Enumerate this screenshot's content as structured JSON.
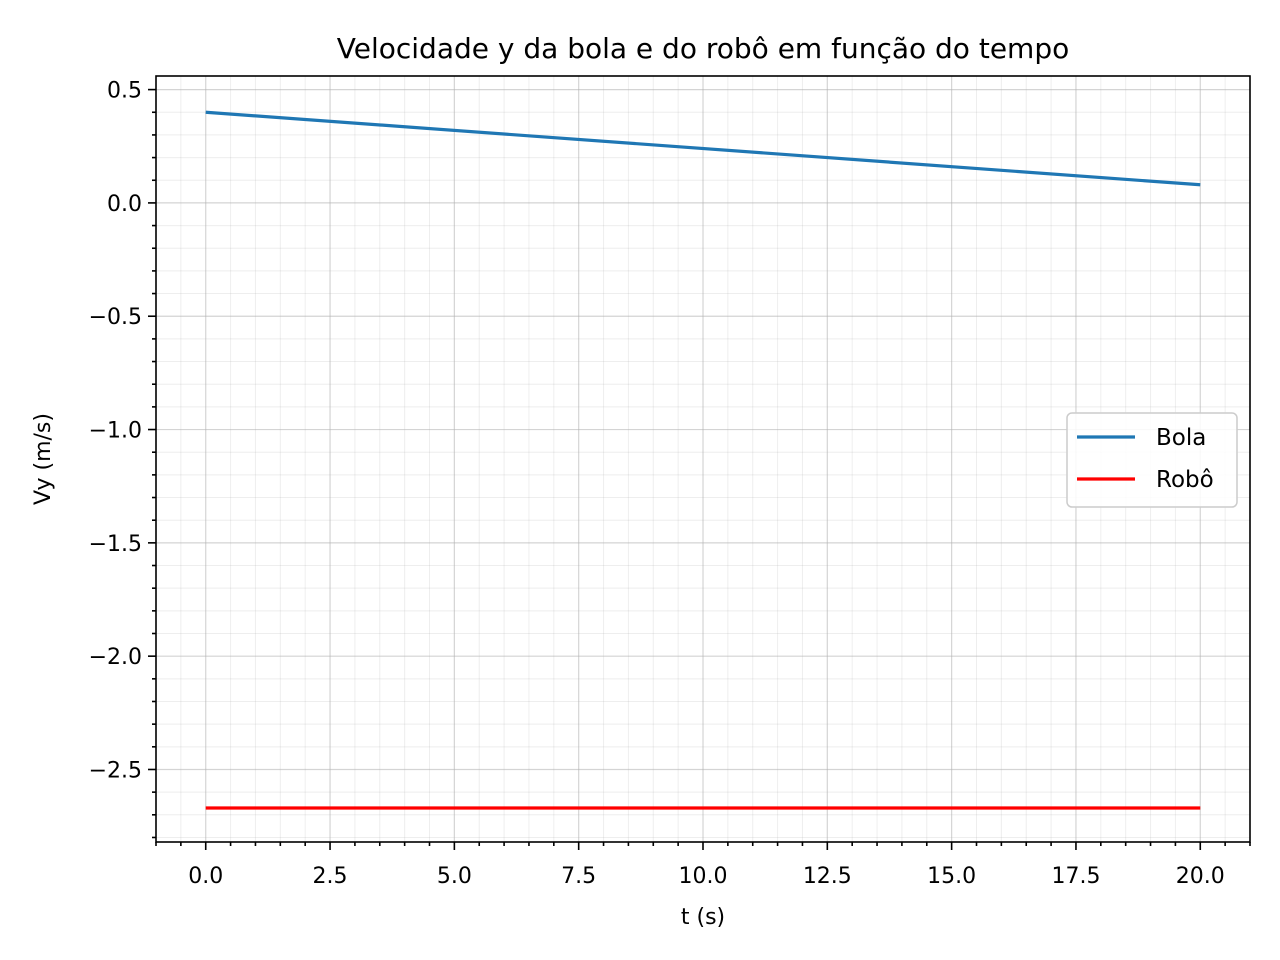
{
  "chart_data": {
    "type": "line",
    "title": "Velocidade y da bola e do robô em função do tempo",
    "xlabel": "t (s)",
    "ylabel": "Vy (m/s)",
    "xlim": [
      -1.0,
      21.0
    ],
    "ylim": [
      -2.82,
      0.56
    ],
    "xticks": [
      0.0,
      2.5,
      5.0,
      7.5,
      10.0,
      12.5,
      15.0,
      17.5,
      20.0
    ],
    "xtick_labels": [
      "0.0",
      "2.5",
      "5.0",
      "7.5",
      "10.0",
      "12.5",
      "15.0",
      "17.5",
      "20.0"
    ],
    "yticks": [
      0.5,
      0.0,
      -0.5,
      -1.0,
      -1.5,
      -2.0,
      -2.5
    ],
    "ytick_labels": [
      "0.5",
      "0.0",
      "−0.5",
      "−1.0",
      "−1.5",
      "−2.0",
      "−2.5"
    ],
    "grid": true,
    "minor_grid": true,
    "legend_position": "center-right",
    "series": [
      {
        "name": "Bola",
        "color": "#1f77b4",
        "x": [
          0.0,
          20.0
        ],
        "y": [
          0.4,
          0.08
        ]
      },
      {
        "name": "Robô",
        "color": "#ff0000",
        "x": [
          0.0,
          20.0
        ],
        "y": [
          -2.67,
          -2.67
        ]
      }
    ]
  }
}
